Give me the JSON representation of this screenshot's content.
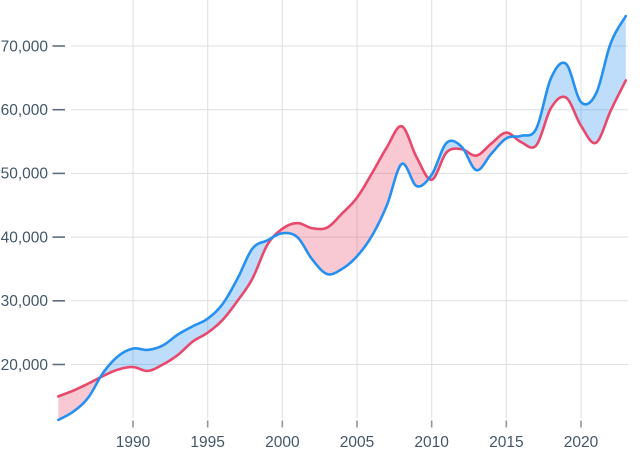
{
  "chart_data": {
    "type": "area",
    "subtype": "two-line-chart-with-fill-between",
    "title": "",
    "xlabel": "",
    "ylabel": "",
    "x": [
      1985,
      1986,
      1987,
      1988,
      1989,
      1990,
      1991,
      1992,
      1993,
      1994,
      1995,
      1996,
      1997,
      1998,
      1999,
      2000,
      2001,
      2002,
      2003,
      2004,
      2005,
      2006,
      2007,
      2008,
      2009,
      2010,
      2011,
      2012,
      2013,
      2014,
      2015,
      2016,
      2017,
      2018,
      2019,
      2020,
      2021,
      2022,
      2023
    ],
    "series": [
      {
        "name": "blue-series",
        "color": "#2690f0",
        "values": [
          11300,
          12600,
          14800,
          18700,
          21300,
          22500,
          22300,
          23000,
          24700,
          26000,
          27200,
          29500,
          33500,
          38200,
          39500,
          40600,
          40000,
          36500,
          34200,
          35000,
          37000,
          40200,
          45000,
          51500,
          48000,
          49800,
          54800,
          54200,
          50500,
          53100,
          55500,
          55900,
          57000,
          65000,
          67200,
          61200,
          62500,
          70500,
          74700
        ]
      },
      {
        "name": "red-series",
        "color": "#e9486d",
        "values": [
          15000,
          15900,
          17000,
          18200,
          19200,
          19600,
          19000,
          20000,
          21500,
          23600,
          25000,
          27000,
          30000,
          33500,
          38800,
          41300,
          42200,
          41400,
          41500,
          43700,
          46200,
          50000,
          54100,
          57400,
          52500,
          49000,
          53300,
          53800,
          52800,
          54700,
          56400,
          54900,
          54400,
          60300,
          61900,
          57500,
          54800,
          59900,
          64600
        ]
      }
    ],
    "band_fill_opacity": 0.3,
    "x_ticks": {
      "values": [
        1990,
        1995,
        2000,
        2005,
        2010,
        2015,
        2020
      ],
      "labels": [
        "1990",
        "1995",
        "2000",
        "2005",
        "2010",
        "2015",
        "2020"
      ]
    },
    "y_ticks": {
      "values": [
        20000,
        30000,
        40000,
        50000,
        60000,
        70000
      ],
      "labels": [
        "20,000",
        "30,000",
        "40,000",
        "50,000",
        "60,000",
        "70,000"
      ]
    },
    "xlim": [
      1984.8,
      2023.2
    ],
    "ylim": [
      9800,
      75800
    ],
    "grid": true,
    "legend": false,
    "background": "#ffffff",
    "grid_color": "#dcdfe2",
    "x_tick_color": "#8a97a3",
    "y_tick_color": "#5e6e7e",
    "label_color": "#43566a"
  }
}
